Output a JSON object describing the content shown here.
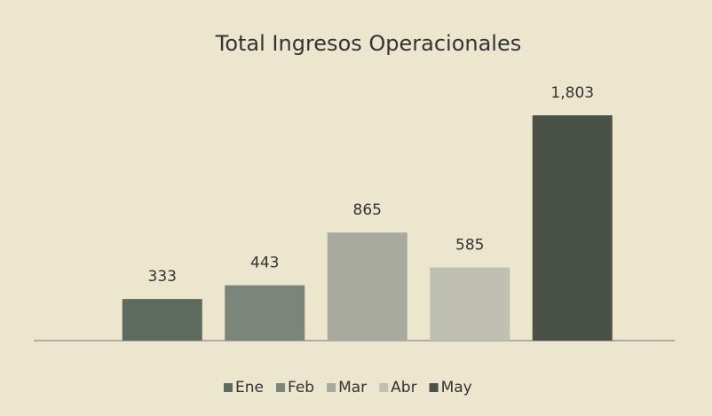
{
  "chart_data": {
    "type": "bar",
    "title": "Total Ingresos Operacionales",
    "categories": [
      "Ene",
      "Feb",
      "Mar",
      "Abr",
      "May"
    ],
    "values": [
      333,
      443,
      865,
      585,
      1803
    ],
    "value_labels": [
      "333",
      "443",
      "865",
      "585",
      "1,803"
    ],
    "colors": [
      "#5f6a5e",
      "#7b8579",
      "#a8aa9e",
      "#bfbfb2",
      "#4a5248"
    ],
    "legend": "bottom"
  }
}
